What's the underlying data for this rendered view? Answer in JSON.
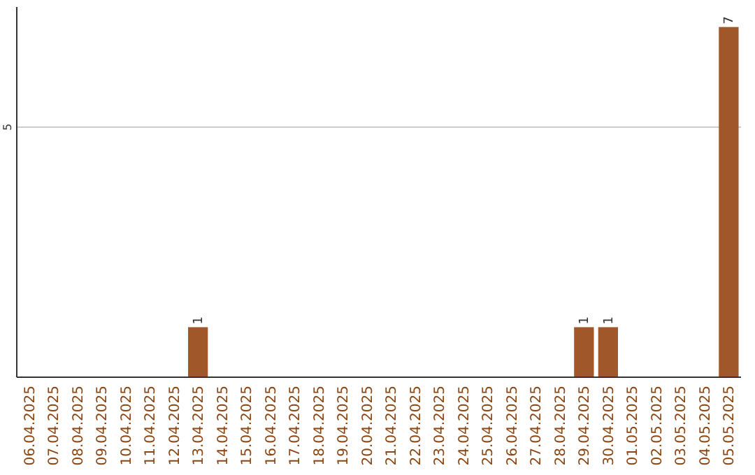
{
  "chart_data": {
    "type": "bar",
    "categories": [
      "06.04.2025",
      "07.04.2025",
      "08.04.2025",
      "09.04.2025",
      "10.04.2025",
      "11.04.2025",
      "12.04.2025",
      "13.04.2025",
      "14.04.2025",
      "15.04.2025",
      "16.04.2025",
      "17.04.2025",
      "18.04.2025",
      "19.04.2025",
      "20.04.2025",
      "21.04.2025",
      "22.04.2025",
      "23.04.2025",
      "24.04.2025",
      "25.04.2025",
      "26.04.2025",
      "27.04.2025",
      "28.04.2025",
      "29.04.2025",
      "30.04.2025",
      "01.05.2025",
      "02.05.2025",
      "03.05.2025",
      "04.05.2025",
      "05.05.2025"
    ],
    "values": [
      0,
      0,
      0,
      0,
      0,
      0,
      0,
      1,
      0,
      0,
      0,
      0,
      0,
      0,
      0,
      0,
      0,
      0,
      0,
      0,
      0,
      0,
      0,
      1,
      1,
      0,
      0,
      0,
      0,
      7
    ],
    "color": "#a0582a",
    "value_labels": [
      null,
      null,
      null,
      null,
      null,
      null,
      null,
      "1",
      null,
      null,
      null,
      null,
      null,
      null,
      null,
      null,
      null,
      null,
      null,
      null,
      null,
      null,
      null,
      "1",
      "1",
      null,
      null,
      null,
      null,
      "7"
    ],
    "ylim": [
      0,
      7.4
    ],
    "yticks": [
      5
    ],
    "grid": "y"
  }
}
